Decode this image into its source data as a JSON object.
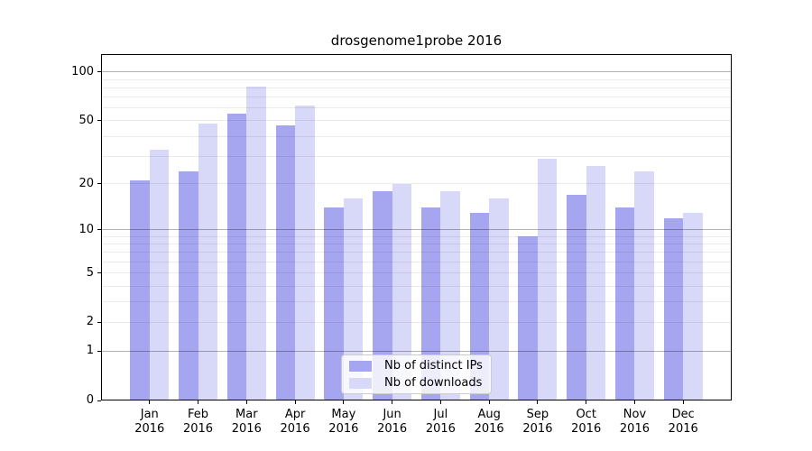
{
  "title": "drosgenome1probe 2016",
  "chart_data": {
    "type": "bar",
    "title": "drosgenome1probe 2016",
    "categories": [
      "Jan 2016",
      "Feb 2016",
      "Mar 2016",
      "Apr 2016",
      "May 2016",
      "Jun 2016",
      "Jul 2016",
      "Aug 2016",
      "Sep 2016",
      "Oct 2016",
      "Nov 2016",
      "Dec 2016"
    ],
    "series": [
      {
        "name": "Nb of distinct IPs",
        "color": "#a5a5f0",
        "values": [
          21,
          24,
          55,
          47,
          14,
          18,
          14,
          13,
          9,
          17,
          14,
          12
        ]
      },
      {
        "name": "Nb of downloads",
        "color": "#d8d8f8",
        "values": [
          33,
          48,
          81,
          62,
          16,
          20,
          18,
          16,
          29,
          26,
          24,
          13
        ]
      }
    ],
    "xlabel": "",
    "ylabel": "",
    "yscale": "log1p",
    "ylim": [
      0,
      129
    ],
    "yticks": [
      100,
      50,
      20,
      10,
      5,
      2,
      1,
      0
    ],
    "ytick_labels": [
      "100",
      "50",
      "20",
      "10",
      "5",
      "2",
      "1",
      "0"
    ],
    "major_gridlines": [
      1,
      10,
      100
    ],
    "minor_gridlines": [
      2,
      3,
      4,
      5,
      6,
      7,
      8,
      9,
      20,
      30,
      40,
      50,
      60,
      70,
      80,
      90
    ],
    "grid": true,
    "legend_position": "lower center"
  },
  "colors": {
    "background": "#ffffff",
    "axis": "#000000",
    "major_grid": "rgba(0,0,0,0.30)",
    "minor_grid": "rgba(0,0,0,0.08)",
    "text": "#000000",
    "legend_border": "#cccccc",
    "legend_background": "rgba(255,255,255,0.8)"
  }
}
